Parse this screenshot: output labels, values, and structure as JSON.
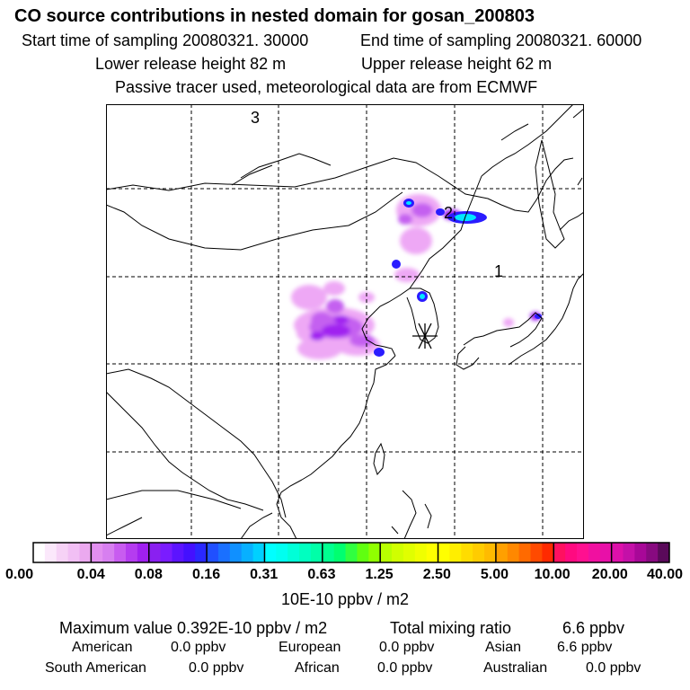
{
  "header": {
    "title": "CO  source contributions in nested domain for gosan_200803",
    "start_label": "Start time of sampling 20080321. 30000",
    "end_label": "End time of sampling 20080321. 60000",
    "lower_label": "Lower release height   82 m",
    "upper_label": "Upper release height   62 m",
    "tracer_label": "Passive tracer used, meteorological data are from ECMWF"
  },
  "map": {
    "region_labels": [
      "1",
      "2",
      "3"
    ],
    "receptor_marker": "asterisk-icon"
  },
  "colorbar": {
    "tick_labels": [
      "0.00",
      "0.04",
      "0.08",
      "0.16",
      "0.31",
      "0.63",
      "1.25",
      "2.50",
      "5.00",
      "10.00",
      "20.00",
      "40.00"
    ],
    "units": "10E-10 ppbv / m2",
    "colors": [
      [
        "#ffffff",
        "#fbe8fb",
        "#f6d2f6",
        "#f1bff4",
        "#eba9ef"
      ],
      [
        "#e28ff0",
        "#d77ff0",
        "#c85cf0",
        "#b53cf0",
        "#a020f0"
      ],
      [
        "#8a20f0",
        "#7a1cff",
        "#5c14ff",
        "#4410ff",
        "#2a28ff"
      ],
      [
        "#2050ff",
        "#1a70ff",
        "#1090ff",
        "#08b0ff",
        "#00d0ff"
      ],
      [
        "#00ffff",
        "#00fff0",
        "#00ffd8",
        "#00ffc0",
        "#00ffa8"
      ],
      [
        "#00ff90",
        "#00ff70",
        "#30ff40",
        "#60ff10",
        "#90ff00"
      ],
      [
        "#b8ff00",
        "#d0ff00",
        "#e0ff00",
        "#f0ff00",
        "#ffff00"
      ],
      [
        "#ffff00",
        "#ffee00",
        "#ffdc00",
        "#ffcc00",
        "#ffbb00"
      ],
      [
        "#ffa000",
        "#ff8800",
        "#ff6a00",
        "#ff4a00",
        "#ff2a00"
      ],
      [
        "#ff1060",
        "#ff0a80",
        "#ff1090",
        "#f010a0",
        "#e810a8"
      ],
      [
        "#dd10aa",
        "#c410a8",
        "#a80898",
        "#880a80",
        "#5a0a5a"
      ]
    ]
  },
  "stats": {
    "max_label": "Maximum value  0.392E-10 ppbv / m2",
    "total_label": "Total mixing ratio",
    "total_value": "6.6 ppbv",
    "american_label": "American",
    "american_value": "0.0 ppbv",
    "european_label": "European",
    "european_value": "0.0 ppbv",
    "asian_label": "Asian",
    "asian_value": "6.6 ppbv",
    "south_american_label": "South American",
    "south_american_value": "0.0 ppbv",
    "african_label": "African",
    "african_value": "0.0 ppbv",
    "australian_label": "Australian",
    "australian_value": "0.0 ppbv"
  }
}
